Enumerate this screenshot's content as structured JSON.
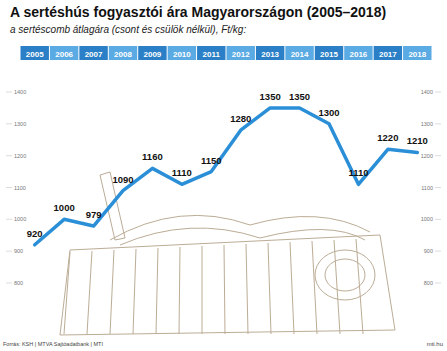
{
  "chart_data": {
    "type": "line",
    "title": "A sertéshús fogyasztói ára Magyarországon (2005–2018)",
    "subtitle": "a sertéscomb átlagára (csont és csülök nélkül), Ft/kg:",
    "categories": [
      "2005",
      "2006",
      "2007",
      "2008",
      "2009",
      "2010",
      "2011",
      "2012",
      "2013",
      "2014",
      "2015",
      "2016",
      "2017",
      "2018"
    ],
    "values": [
      920,
      1000,
      979,
      1090,
      1160,
      1110,
      1150,
      1280,
      1350,
      1350,
      1300,
      1110,
      1220,
      1210
    ],
    "color": "#2b8fd8",
    "ylim": [
      800,
      1400
    ],
    "yticks": [
      800,
      900,
      1000,
      1100,
      1200,
      1300,
      1400
    ],
    "grid": false,
    "data_labels": true,
    "annotations": [
      "Forrás: KSH | MTVA Sajtóadatbank | MTI",
      "mti.hu"
    ]
  }
}
